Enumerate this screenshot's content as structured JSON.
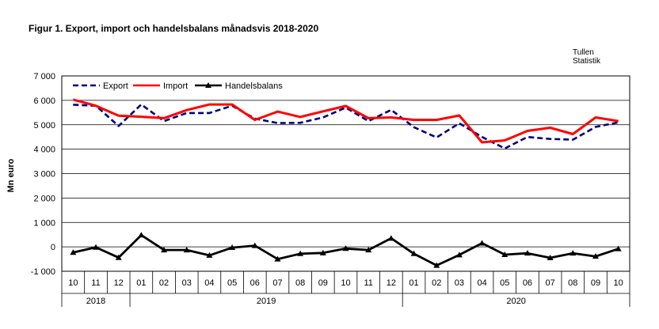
{
  "chart_data": {
    "type": "line",
    "title": "Figur 1. Export, import och handelsbalans månadsvis 2018-2020",
    "source": [
      "Tullen",
      "Statistik"
    ],
    "ylabel": "Mn euro",
    "xlabel": "",
    "ylim": [
      -1000,
      7000
    ],
    "yticks": [
      "7 000",
      "6 000",
      "5 000",
      "4 000",
      "3 000",
      "2 000",
      "1 000",
      "0",
      "-1 000"
    ],
    "ytick_values": [
      7000,
      6000,
      5000,
      4000,
      3000,
      2000,
      1000,
      0,
      -1000
    ],
    "categories": [
      "10",
      "11",
      "12",
      "01",
      "02",
      "03",
      "04",
      "05",
      "06",
      "07",
      "08",
      "09",
      "10",
      "11",
      "12",
      "01",
      "02",
      "03",
      "04",
      "05",
      "06",
      "07",
      "08",
      "09",
      "10"
    ],
    "years": [
      {
        "label": "2018",
        "count": 3
      },
      {
        "label": "2019",
        "count": 12
      },
      {
        "label": "2020",
        "count": 10
      }
    ],
    "grid": true,
    "legend_position": "top-left",
    "series": [
      {
        "name": "Export",
        "color": "#00007f",
        "style": "dashed",
        "values": [
          5820,
          5780,
          4950,
          5830,
          5150,
          5480,
          5480,
          5780,
          5250,
          5070,
          5080,
          5300,
          5700,
          5150,
          5610,
          4900,
          4480,
          5060,
          4500,
          4030,
          4500,
          4420,
          4390,
          4910,
          5100
        ]
      },
      {
        "name": "Import",
        "color": "#ff0000",
        "style": "solid",
        "values": [
          6030,
          5780,
          5370,
          5330,
          5270,
          5600,
          5830,
          5830,
          5200,
          5540,
          5320,
          5550,
          5770,
          5270,
          5300,
          5200,
          5200,
          5380,
          4280,
          4360,
          4750,
          4880,
          4620,
          5300,
          5150
        ]
      },
      {
        "name": "Handelsbalans",
        "color": "#000000",
        "style": "solid-triangle",
        "values": [
          -230,
          -20,
          -440,
          480,
          -130,
          -130,
          -350,
          -30,
          50,
          -500,
          -280,
          -250,
          -70,
          -130,
          350,
          -280,
          -760,
          -330,
          150,
          -320,
          -260,
          -450,
          -260,
          -390,
          -80
        ]
      }
    ]
  }
}
